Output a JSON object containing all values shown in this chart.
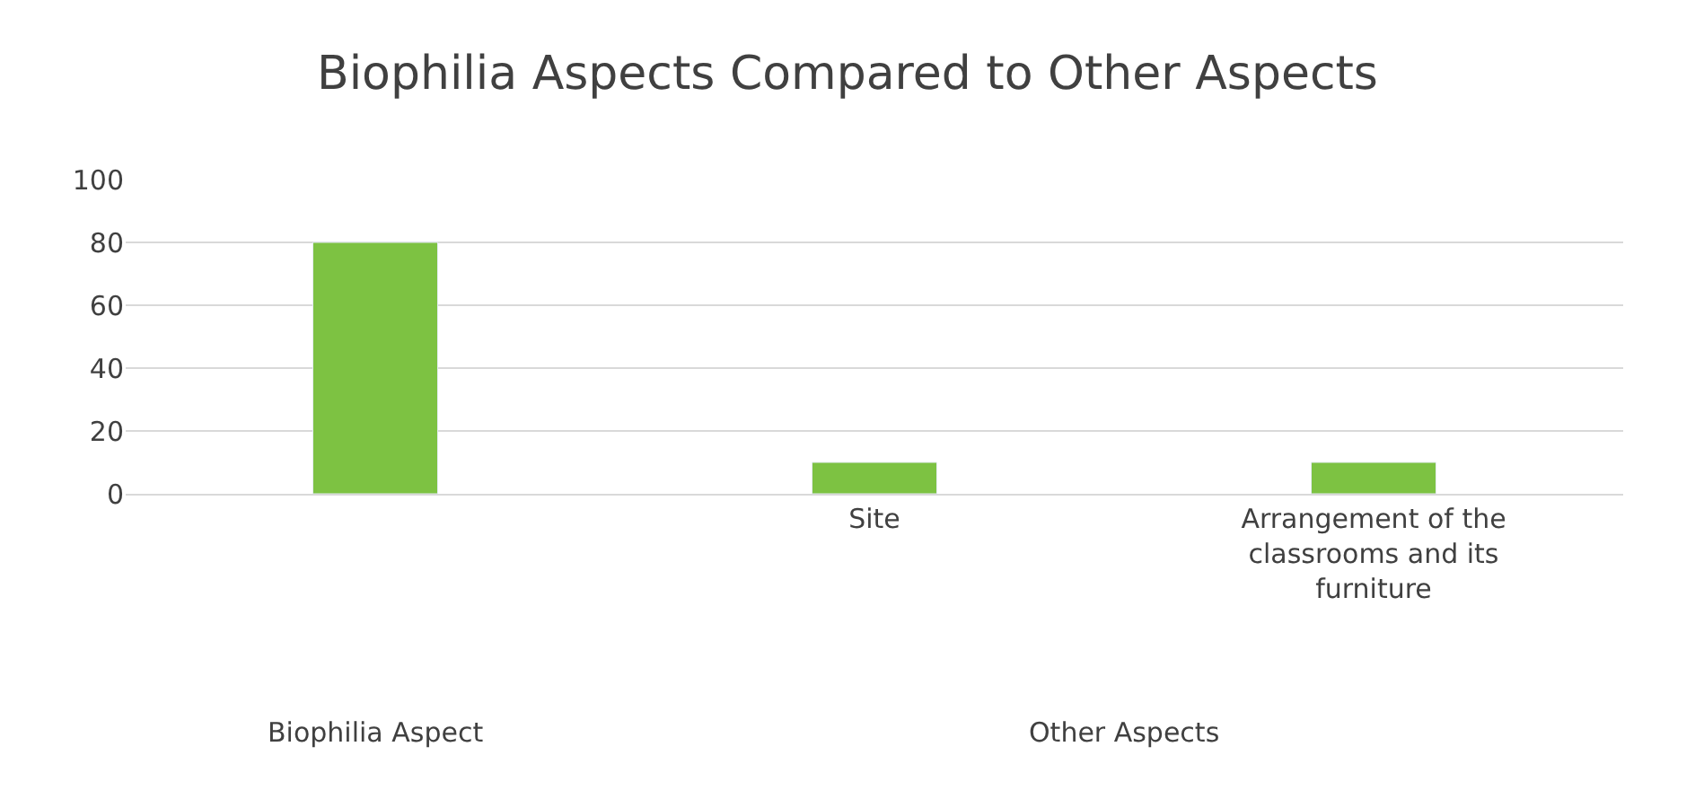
{
  "chart_data": {
    "type": "bar",
    "title": "Biophilia Aspects Compared to Other Aspects",
    "categories": [
      null,
      "Site",
      "Arrangement of the classrooms and its furniture"
    ],
    "values": [
      80,
      10,
      10
    ],
    "color": "#7dc242",
    "ylim": [
      0,
      100
    ],
    "yticks": [
      0,
      20,
      40,
      60,
      80,
      100
    ],
    "grid": "y",
    "annotations": [
      "Biophilia Aspect",
      "Other Aspects"
    ]
  }
}
